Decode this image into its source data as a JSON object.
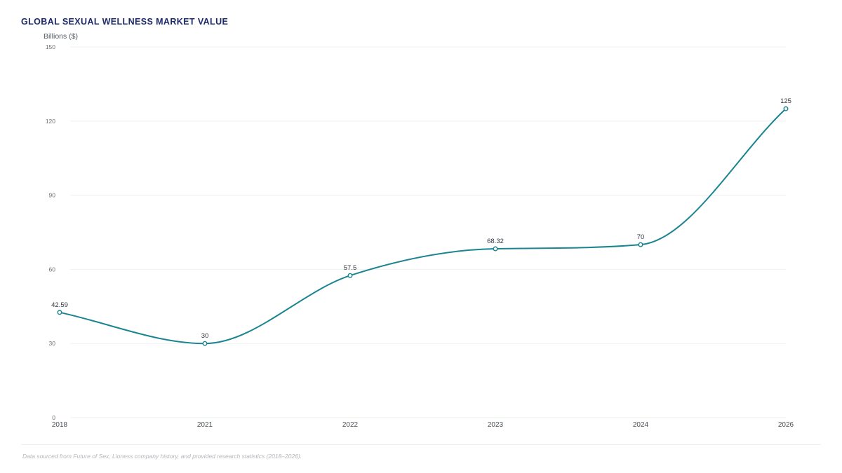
{
  "title": "GLOBAL SEXUAL WELLNESS MARKET VALUE",
  "y_unit_label": "Billions ($)",
  "source_note": "Data sourced from Future of Sex, Lioness company history, and provided research statistics (2018–2026).",
  "colors": {
    "line": "#1a8590",
    "title": "#1b2a6b",
    "grid": "#eef0f2"
  },
  "chart_data": {
    "type": "line",
    "categories": [
      "2018",
      "2021",
      "2022",
      "2023",
      "2024",
      "2026"
    ],
    "series": [
      {
        "values": [
          42.59,
          30,
          57.5,
          68.32,
          70,
          125
        ],
        "data_labels": [
          "42.59",
          "30",
          "57.5",
          "68.32",
          "70",
          "125"
        ]
      }
    ],
    "ylim": [
      0,
      150
    ],
    "y_ticks": [
      0,
      30,
      60,
      90,
      120,
      150
    ],
    "y_tick_labels": [
      "0",
      "30",
      "60",
      "90",
      "120",
      "150"
    ],
    "grid": true,
    "legend": "none",
    "title": "GLOBAL SEXUAL WELLNESS MARKET VALUE",
    "ylabel": "Billions ($)",
    "xlabel": ""
  }
}
